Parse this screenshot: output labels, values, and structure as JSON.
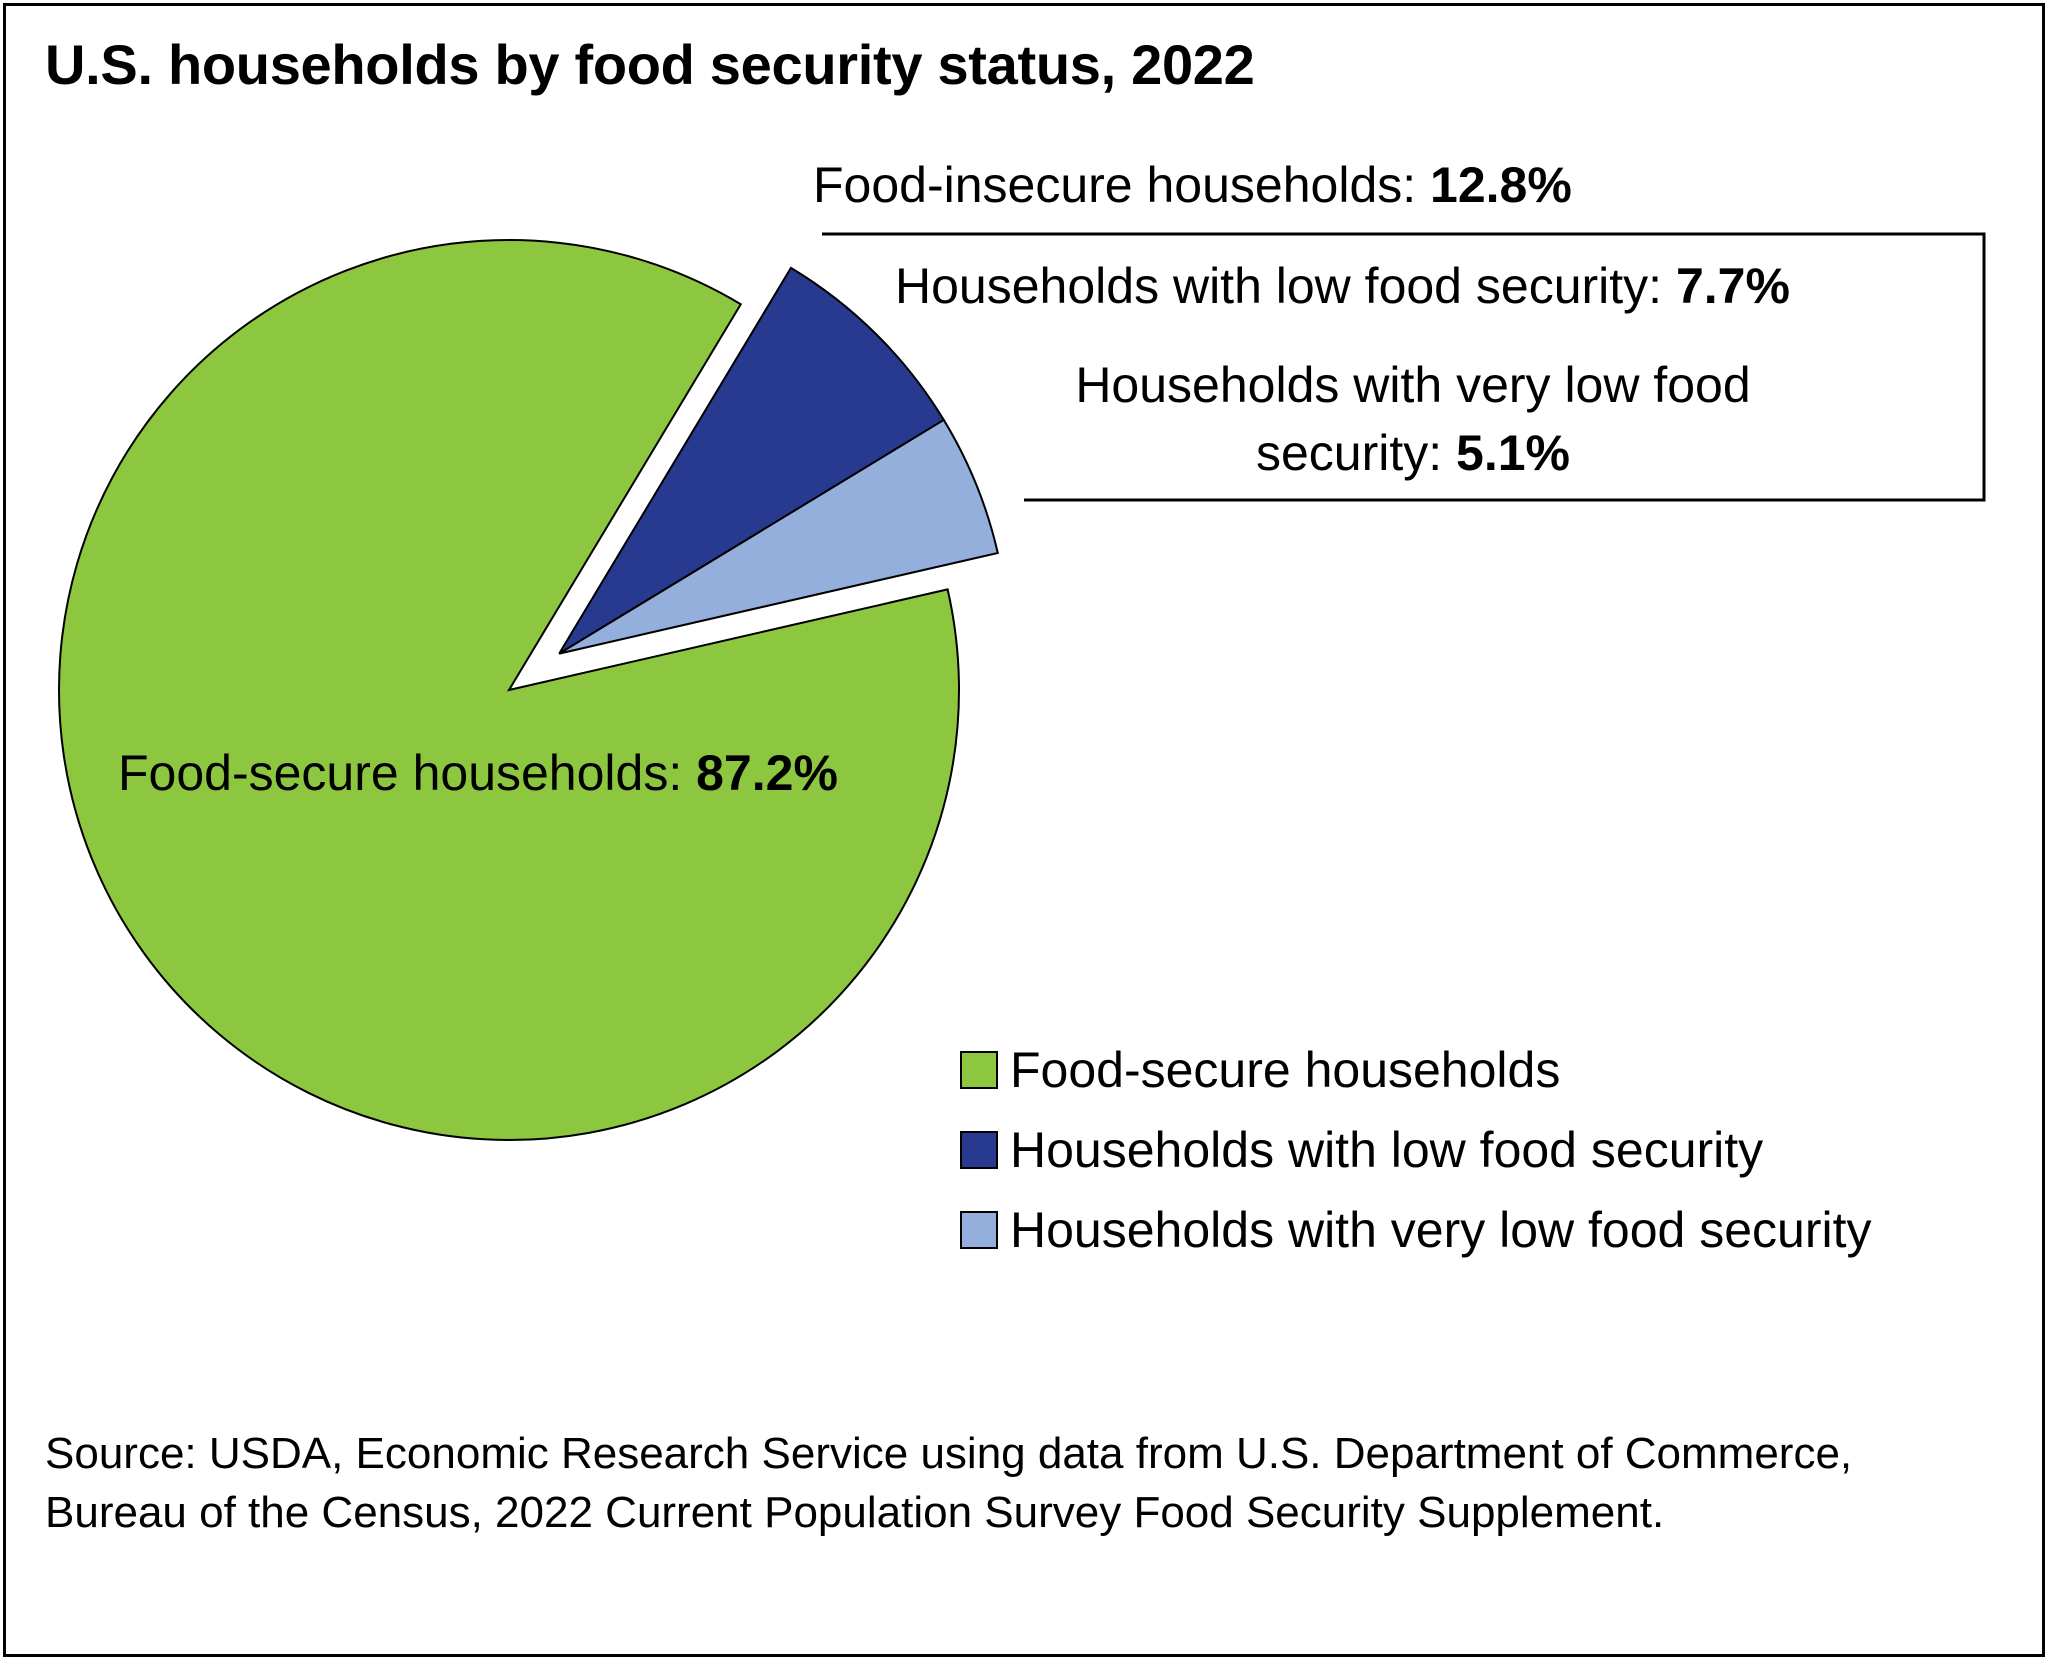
{
  "chart_data": {
    "type": "pie",
    "title": "U.S. households by food security status, 2022",
    "slices": [
      {
        "name": "Food-secure households",
        "value": 87.2,
        "value_label": "87.2%",
        "label": "Food-secure households: ",
        "color": "#8dc63f",
        "exploded": false
      },
      {
        "name": "Households with low food security",
        "value": 7.7,
        "value_label": "7.7%",
        "label": "Households with low food security: ",
        "color": "#283a8f",
        "exploded": true
      },
      {
        "name": "Households with very low food security",
        "value": 5.1,
        "value_label": "5.1%",
        "label_lines": [
          "Households with very low food",
          "security: "
        ],
        "color": "#94afdc",
        "exploded": true
      }
    ],
    "group_annotation": {
      "label": "Food-insecure households: ",
      "value_label": "12.8%",
      "value": 12.8
    },
    "legend": {
      "position": "bottom-right",
      "items": [
        {
          "label": "Food-secure households",
          "color": "#8dc63f"
        },
        {
          "label": "Households with low food security",
          "color": "#283a8f"
        },
        {
          "label": "Households with very low food security",
          "color": "#94afdc"
        }
      ]
    }
  },
  "source": "Source: USDA, Economic Research Service using data from U.S. Department of Commerce, Bureau of the Census, 2022 Current Population Survey Food Security Supplement."
}
